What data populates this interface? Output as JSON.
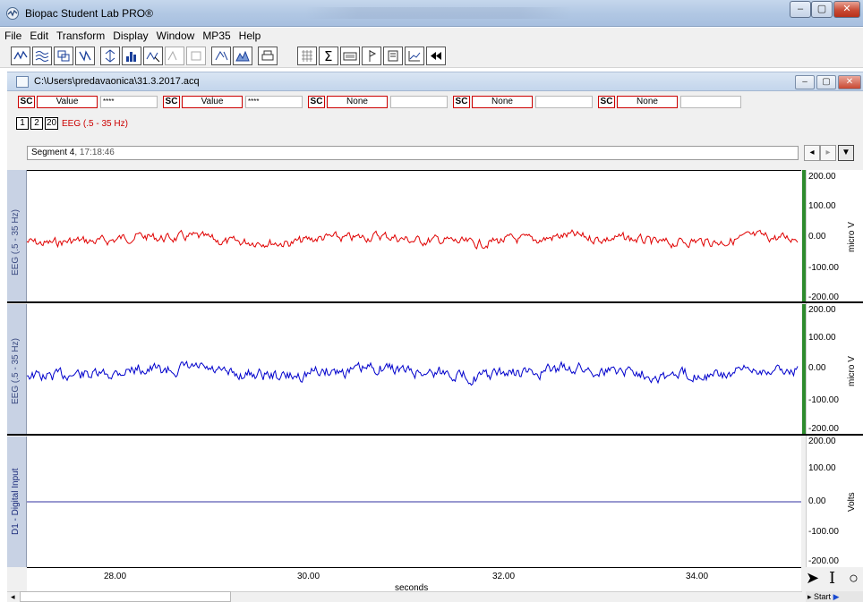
{
  "window": {
    "title": "Biopac Student Lab PRO®",
    "minimize": "–",
    "maximize": "▢",
    "close": "✕"
  },
  "menu": [
    "File",
    "Edit",
    "Transform",
    "Display",
    "Window",
    "MP35",
    "Help"
  ],
  "toolbar_icons": [
    "waveform-icon",
    "filter-icon",
    "overlap-icon",
    "transform-icon",
    "scale-icon",
    "histogram-icon",
    "zoom-icon",
    "peak-icon",
    "autoscale-icon",
    "scale-fit-icon",
    "mountain-icon",
    "printer-icon",
    "grid-icon",
    "sigma-icon",
    "keyboard-icon",
    "marker-icon",
    "journal-icon",
    "chart-icon",
    "rewind-icon"
  ],
  "document": {
    "title": "C:\\Users\\predavaonica\\31.3.2017.acq"
  },
  "measurements": [
    {
      "channel": "SC",
      "function": "Value",
      "result": "****"
    },
    {
      "channel": "SC",
      "function": "Value",
      "result": "****"
    },
    {
      "channel": "SC",
      "function": "None",
      "result": ""
    },
    {
      "channel": "SC",
      "function": "None",
      "result": ""
    },
    {
      "channel": "SC",
      "function": "None",
      "result": ""
    }
  ],
  "channel_buttons": [
    "1",
    "2",
    "20"
  ],
  "selected_channel_label": "EEG (.5 - 35 Hz)",
  "segment": {
    "name": "Segment 4",
    "time": ", 17:18:46"
  },
  "channels": [
    {
      "name": "EEG (.5 - 35 Hz)",
      "unit": "micro V",
      "ticks": [
        "200.00",
        "100.00",
        "0.00",
        "-100.00",
        "-200.00"
      ],
      "color": "#e00000"
    },
    {
      "name": "EEG (.5 - 35 Hz)",
      "unit": "micro V",
      "ticks": [
        "200.00",
        "100.00",
        "0.00",
        "-100.00",
        "-200.00"
      ],
      "color": "#0000cc"
    },
    {
      "name": "D1 - Digital Input",
      "unit": "Volts",
      "ticks": [
        "200.00",
        "100.00",
        "0.00",
        "-100.00",
        "-200.00"
      ],
      "color": "#0000aa"
    }
  ],
  "x_axis": {
    "ticks": [
      "28.00",
      "30.00",
      "32.00",
      "34.00"
    ],
    "label": "seconds"
  },
  "start_label": "Start",
  "colors": {
    "eeg1": "#e00000",
    "eeg2": "#0000cc",
    "digital": "#3030a0",
    "green": "#2e8b2e"
  }
}
